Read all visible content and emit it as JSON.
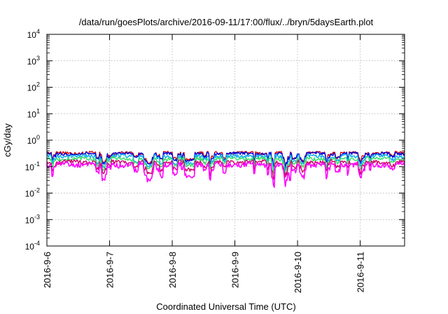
{
  "chart_data": {
    "type": "line",
    "title": "/data/run/goesPlots/archive/2016-09-11/17:00/flux/../bryn/5daysEarth.plot",
    "xlabel": "Coordinated Universal Time (UTC)",
    "ylabel": "cGy/day",
    "yscale": "log",
    "ylim": [
      0.0001,
      10000
    ],
    "xlim": [
      "2016-09-06 00:00",
      "2016-09-11 17:00"
    ],
    "x_ticks": [
      "2016-9-6",
      "2016-9-7",
      "2016-9-8",
      "2016-9-9",
      "2016-9-10",
      "2016-9-11"
    ],
    "y_ticks": [
      {
        "base": "10",
        "exp": "4"
      },
      {
        "base": "10",
        "exp": "3"
      },
      {
        "base": "10",
        "exp": "2"
      },
      {
        "base": "10",
        "exp": "1"
      },
      {
        "base": "10",
        "exp": "0"
      },
      {
        "base": "10",
        "exp": "-1"
      },
      {
        "base": "10",
        "exp": "-2"
      },
      {
        "base": "10",
        "exp": "-3"
      },
      {
        "base": "10",
        "exp": "-4"
      }
    ],
    "grid": true,
    "series": [
      {
        "color": "#dd0000",
        "base": 0.33,
        "amp": 0.12,
        "dips": 0.55
      },
      {
        "color": "#0000dd",
        "base": 0.31,
        "amp": 0.12,
        "dips": 0.55
      },
      {
        "color": "#00aaee",
        "base": 0.25,
        "amp": 0.15,
        "dips": 0.6
      },
      {
        "color": "#33dd66",
        "base": 0.2,
        "amp": 0.15,
        "dips": 0.6
      },
      {
        "color": "#cc0066",
        "base": 0.15,
        "amp": 0.18,
        "dips": 0.65
      },
      {
        "color": "#ff00ff",
        "base": 0.12,
        "amp": 0.2,
        "dips": 0.8
      }
    ]
  }
}
